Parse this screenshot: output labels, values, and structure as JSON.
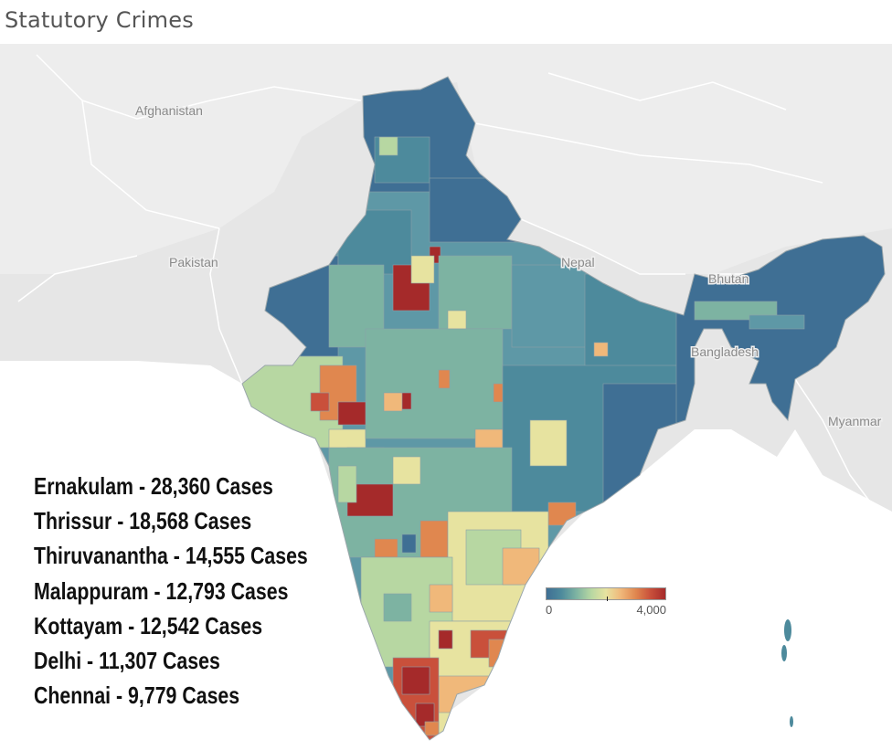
{
  "title": "Statutory Crimes",
  "map": {
    "country_labels": {
      "afghanistan": "Afghanistan",
      "pakistan": "Pakistan",
      "nepal": "Nepal",
      "bhutan": "Bhutan",
      "bangladesh": "Bangladesh",
      "myanmar": "Myanmar"
    },
    "color_scale": [
      "#3f6f94",
      "#4d8a9c",
      "#7db3a2",
      "#b7d7a2",
      "#e7e3a0",
      "#f0b87a",
      "#e0874f",
      "#c9503b",
      "#a52a2a"
    ]
  },
  "legend": {
    "min_label": "0",
    "max_label": "4,000"
  },
  "annotations": [
    "Ernakulam - 28,360 Cases",
    "Thrissur - 18,568 Cases",
    "Thiruvanantha - 14,555 Cases",
    "Malappuram - 12,793 Cases",
    "Kottayam - 12,542 Cases",
    "Delhi - 11,307 Cases",
    "Chennai - 9,779 Cases"
  ]
}
